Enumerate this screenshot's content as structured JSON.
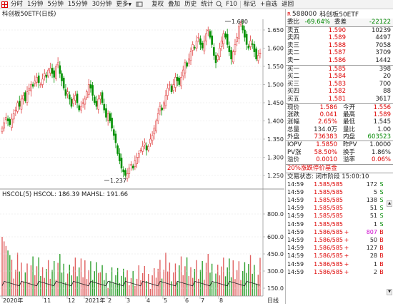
{
  "toolbar": {
    "items": [
      "分时",
      "1分钟",
      "5分钟",
      "15分钟",
      "30分钟",
      "更多"
    ],
    "right_items": [
      "复权",
      "叠加",
      "历史",
      "统计",
      "F10",
      "标记",
      "+自选",
      "返回"
    ]
  },
  "chart": {
    "title": "科创板50ETF(日线)",
    "y_ticks": [
      "1.650",
      "1.600",
      "1.550",
      "1.500",
      "1.450",
      "1.400",
      "1.350",
      "1.300",
      "1.250"
    ],
    "high_label": "1.680",
    "low_label": "1.237",
    "indicator_label": "HSCOL(5)  HSCOL: 186.39  MAHSL: 191.66",
    "vol_ticks": [
      "800.0",
      "600.0",
      "450.0",
      "300.0",
      "150.0"
    ],
    "x_labels": [
      "2020年",
      "11",
      "12",
      "2021年",
      "2",
      "3",
      "4",
      "5",
      "6",
      "7",
      "8"
    ],
    "period_label": "日线"
  },
  "quote": {
    "code": "588000",
    "name": "科创板50ETF",
    "wb_label": "委比",
    "wb_value": "-69.64%",
    "wc_label": "委差",
    "wc_value": "-22122",
    "sells": [
      {
        "label": "卖五",
        "price": "1.590",
        "vol": "10239"
      },
      {
        "label": "卖四",
        "price": "1.589",
        "vol": "4497"
      },
      {
        "label": "卖三",
        "price": "1.588",
        "vol": "7058"
      },
      {
        "label": "卖二",
        "price": "1.587",
        "vol": "3709"
      },
      {
        "label": "卖一",
        "price": "1.586",
        "vol": "1442"
      }
    ],
    "buys": [
      {
        "label": "买一",
        "price": "1.585",
        "vol": "398"
      },
      {
        "label": "买二",
        "price": "1.584",
        "vol": "20"
      },
      {
        "label": "买三",
        "price": "1.583",
        "vol": "700"
      },
      {
        "label": "买四",
        "price": "1.582",
        "vol": "88"
      },
      {
        "label": "买五",
        "price": "1.581",
        "vol": "3617"
      }
    ],
    "stats": [
      {
        "l1": "现价",
        "v1": "1.586",
        "c1": "red",
        "l2": "今开",
        "v2": "1.556",
        "c2": "red"
      },
      {
        "l1": "涨跌",
        "v1": "0.041",
        "c1": "red",
        "l2": "最高",
        "v2": "1.589",
        "c2": "red"
      },
      {
        "l1": "涨幅",
        "v1": "2.65%",
        "c1": "red",
        "l2": "最低",
        "v2": "1.545",
        "c2": ""
      },
      {
        "l1": "总量",
        "v1": "134.0万",
        "c1": "",
        "l2": "量比",
        "v2": "1.00",
        "c2": ""
      },
      {
        "l1": "外盘",
        "v1": "736383",
        "c1": "red",
        "l2": "内盘",
        "v2": "603523",
        "c2": "green"
      }
    ],
    "iopv": [
      {
        "l1": "IOPV",
        "v1": "1.5850",
        "c1": "red",
        "l2": "昨PV",
        "v2": "1.0000",
        "c2": ""
      },
      {
        "l1": "PV涨",
        "v1": "58.50%",
        "c1": "red",
        "l2": "换手",
        "v2": "1.86%",
        "c2": ""
      },
      {
        "l1": "溢价",
        "v1": "0.0010",
        "c1": "red",
        "l2": "溢率",
        "v2": "0.06%",
        "c2": "red"
      }
    ],
    "fund_tag": "20%涨跌停价基金",
    "trade_status": "交易状态: 闭市阶段  15:00:10",
    "trades": [
      {
        "t": "14:59",
        "p": "1.585/585",
        "s": "",
        "q": "172",
        "bs": "S",
        "qc": "",
        "bc": "green"
      },
      {
        "t": "14:59",
        "p": "1.585/585",
        "s": "",
        "q": "5",
        "bs": "S",
        "qc": "",
        "bc": "green"
      },
      {
        "t": "14:59",
        "p": "1.585/585",
        "s": "",
        "q": "138",
        "bs": "S",
        "qc": "",
        "bc": "green"
      },
      {
        "t": "14:59",
        "p": "1.585/585",
        "s": "",
        "q": "51",
        "bs": "S",
        "qc": "",
        "bc": "green"
      },
      {
        "t": "14:59",
        "p": "1.585/585",
        "s": "",
        "q": "51",
        "bs": "S",
        "qc": "",
        "bc": "green"
      },
      {
        "t": "14:59",
        "p": "1.585/585",
        "s": "",
        "q": "1",
        "bs": "S",
        "qc": "",
        "bc": "green"
      },
      {
        "t": "14:59",
        "p": "1.586/585",
        "s": "+",
        "q": "807",
        "bs": "B",
        "qc": "purple",
        "bc": "red"
      },
      {
        "t": "14:59",
        "p": "1.586/585",
        "s": "+",
        "q": "50",
        "bs": "B",
        "qc": "",
        "bc": "red"
      },
      {
        "t": "14:59",
        "p": "1.586/585",
        "s": "+",
        "q": "127",
        "bs": "B",
        "qc": "",
        "bc": "red"
      },
      {
        "t": "14:59",
        "p": "1.586/585",
        "s": "+",
        "q": "28",
        "bs": "B",
        "qc": "",
        "bc": "red"
      },
      {
        "t": "14:59",
        "p": "1.586/585",
        "s": "+",
        "q": "1",
        "bs": "B",
        "qc": "",
        "bc": "red"
      },
      {
        "t": "14:59",
        "p": "1.586/585",
        "s": "+",
        "q": "2",
        "bs": "B",
        "qc": "",
        "bc": "red"
      }
    ]
  }
}
